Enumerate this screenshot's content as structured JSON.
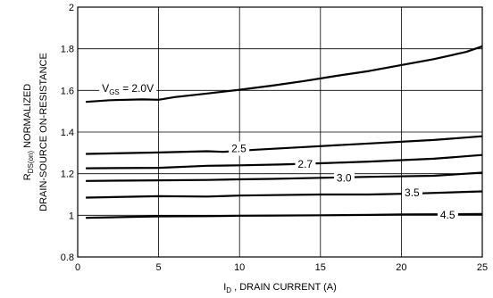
{
  "chart_data": {
    "type": "line",
    "xlabel": {
      "main": "I",
      "sub": "D",
      "rest": " , DRAIN CURRENT (A)"
    },
    "ylabel_line1": {
      "main": "R",
      "sub": "DS(on)",
      "rest": " NORMALIZED"
    },
    "ylabel_line2": "DRAIN-SOURCE ON-RESISTANCE",
    "xlim": [
      0,
      25
    ],
    "ylim": [
      0.8,
      2.0
    ],
    "xticks": [
      "0",
      "5",
      "10",
      "15",
      "20",
      "25"
    ],
    "yticks": [
      "0.8",
      "1",
      "1.2",
      "1.4",
      "1.6",
      "1.8",
      "2"
    ],
    "grid": true,
    "series": [
      {
        "name": "V_GS = 2.0V",
        "label_main": "V",
        "label_sub": "GS",
        "label_rest": " = 2.0V",
        "label_x": 1.5,
        "label_y": 1.61,
        "x": [
          0.5,
          2,
          4,
          5,
          6,
          8,
          10,
          12,
          14,
          16,
          18,
          20,
          22,
          24,
          25
        ],
        "y": [
          1.545,
          1.553,
          1.557,
          1.555,
          1.568,
          1.585,
          1.603,
          1.623,
          1.645,
          1.67,
          1.693,
          1.722,
          1.75,
          1.785,
          1.812
        ]
      },
      {
        "name": "2.5",
        "label_main": "2.5",
        "label_x": 9.5,
        "label_y": 1.32,
        "x": [
          0.5,
          5,
          8,
          9,
          11,
          14,
          18,
          22,
          25
        ],
        "y": [
          1.295,
          1.302,
          1.308,
          1.305,
          1.315,
          1.328,
          1.345,
          1.362,
          1.38
        ]
      },
      {
        "name": "2.7",
        "label_main": "2.7",
        "label_x": 13.6,
        "label_y": 1.245,
        "x": [
          0.5,
          5,
          8,
          10,
          12.5,
          15,
          18,
          22,
          25
        ],
        "y": [
          1.226,
          1.228,
          1.238,
          1.24,
          1.244,
          1.25,
          1.258,
          1.272,
          1.29
        ]
      },
      {
        "name": "3.0",
        "label_main": "3.0",
        "label_x": 16.0,
        "label_y": 1.18,
        "x": [
          0.5,
          5,
          8,
          10,
          12,
          15,
          18,
          22,
          25
        ],
        "y": [
          1.165,
          1.168,
          1.17,
          1.173,
          1.175,
          1.18,
          1.185,
          1.19,
          1.205
        ]
      },
      {
        "name": "3.5",
        "label_main": "3.5",
        "label_x": 20.2,
        "label_y": 1.108,
        "x": [
          0.5,
          5,
          8,
          10,
          12,
          15,
          18,
          21,
          25
        ],
        "y": [
          1.085,
          1.092,
          1.09,
          1.095,
          1.097,
          1.1,
          1.1,
          1.105,
          1.115
        ]
      },
      {
        "name": "4.5",
        "label_main": "4.5",
        "label_x": 22.4,
        "label_y": 1.002,
        "x": [
          0.5,
          5,
          8,
          10,
          12,
          15,
          18,
          20,
          25
        ],
        "y": [
          0.988,
          0.995,
          0.996,
          0.998,
          0.999,
          1.0,
          1.002,
          1.004,
          1.006
        ]
      }
    ]
  }
}
